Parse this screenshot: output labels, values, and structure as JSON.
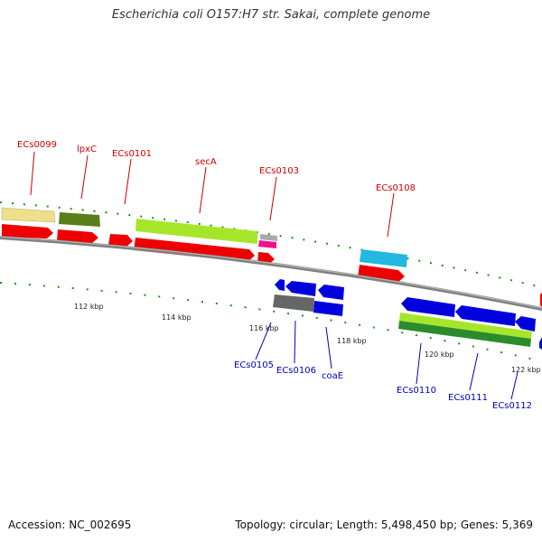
{
  "title": "Escherichia coli O157:H7 str. Sakai, complete genome",
  "accession": "Accession: NC_002695",
  "summary": "Topology: circular; Length: 5,498,450 bp; Genes: 5,369",
  "scale_labels": [
    "112 kbp",
    "114 kbp",
    "116 kbp",
    "118 kbp",
    "120 kbp",
    "122 kbp"
  ],
  "forward_gene_labels": [
    "ECs0099",
    "lpxC",
    "ECs0101",
    "secA",
    "ECs0103",
    "ECs0108"
  ],
  "reverse_gene_labels": [
    "ECs0105",
    "ECs0106",
    "coaE",
    "ECs0110",
    "ECs0111",
    "ECs0112"
  ],
  "colors": {
    "forward_cds": "#ee0000",
    "reverse_cds": "#0000dd",
    "backbone": "#888888",
    "tick": "#119911",
    "cog_yellow": "#eee08a",
    "cog_olive": "#5a7f1a",
    "cog_lime": "#a6e62a",
    "cog_gray": "#aaaaaa",
    "cog_pink": "#ee1090",
    "cog_cyan": "#22b8e0",
    "cog_green": "#2c8c2c"
  }
}
